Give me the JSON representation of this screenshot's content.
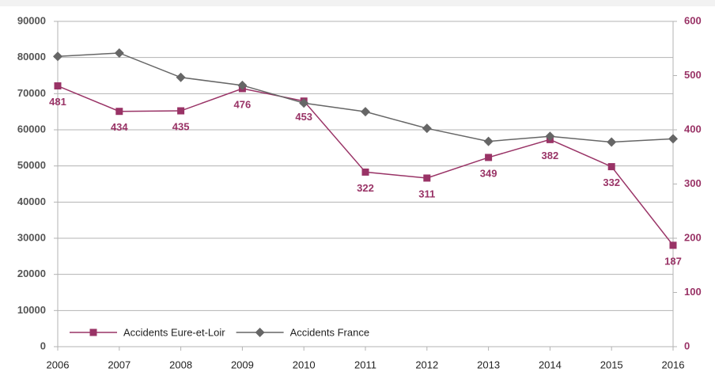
{
  "chart_data": {
    "type": "line",
    "categories": [
      "2006",
      "2007",
      "2008",
      "2009",
      "2010",
      "2011",
      "2012",
      "2013",
      "2014",
      "2015",
      "2016"
    ],
    "series": [
      {
        "name": "Accidents Eure-et-Loir",
        "color": "#993366",
        "axis": "y2",
        "marker": "square",
        "data_labels": true,
        "values": [
          481,
          434,
          435,
          476,
          453,
          322,
          311,
          349,
          382,
          332,
          187
        ]
      },
      {
        "name": "Accidents France",
        "color": "#666666",
        "marker": "diamond",
        "values": [
          80300,
          81250,
          74500,
          72300,
          67400,
          65000,
          60400,
          56800,
          58200,
          56600,
          57500
        ]
      }
    ],
    "ylim": [
      0,
      90000
    ],
    "yticks": [
      0,
      10000,
      20000,
      30000,
      40000,
      50000,
      60000,
      70000,
      80000,
      90000
    ],
    "y2lim": [
      0,
      600
    ],
    "y2ticks": [
      0,
      100,
      200,
      300,
      400,
      500,
      600
    ],
    "grid": true,
    "legend": "lower left"
  }
}
